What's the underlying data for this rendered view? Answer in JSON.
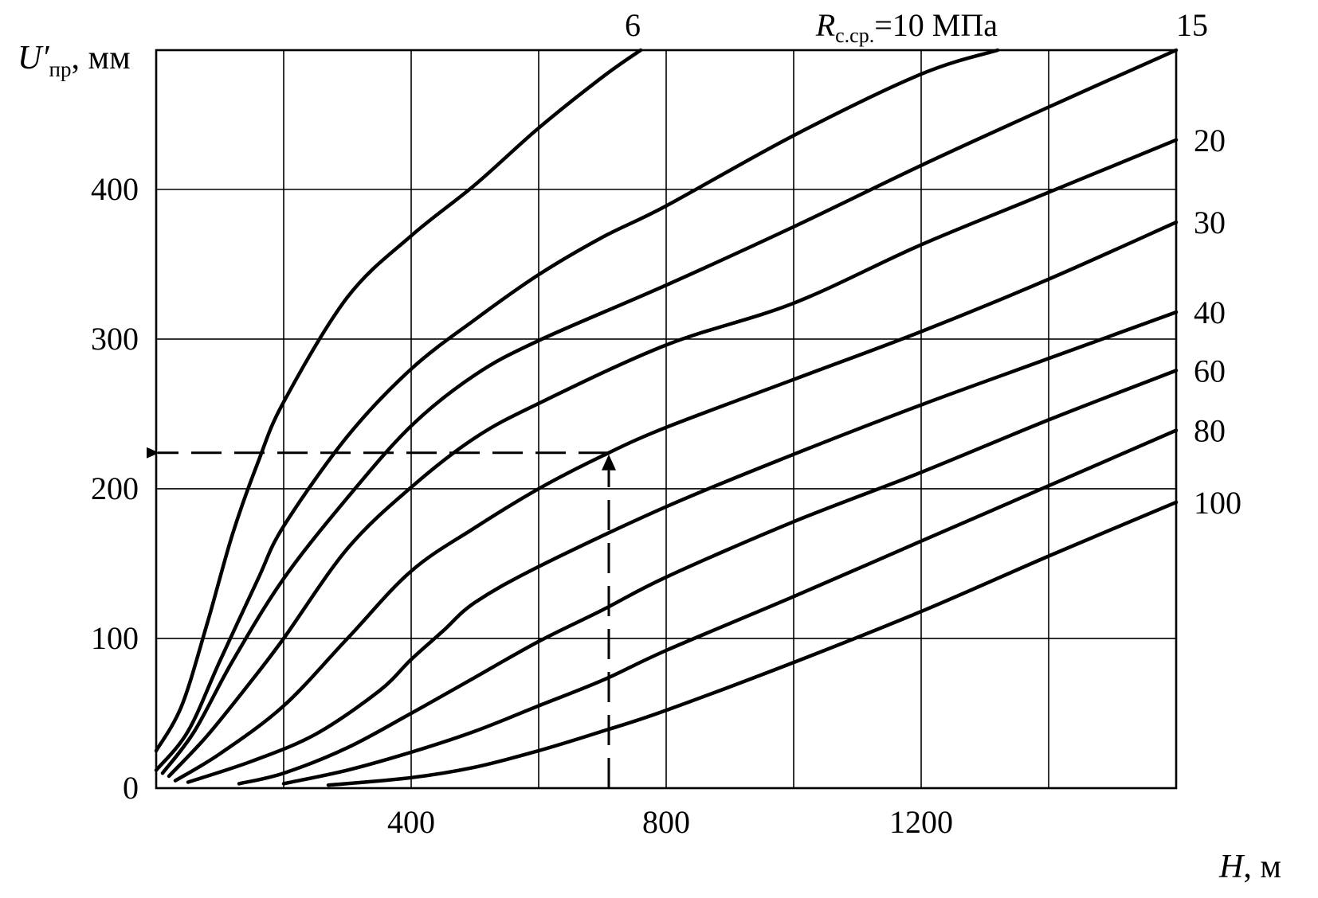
{
  "chart_data": {
    "type": "line",
    "title": "",
    "xlabel": {
      "var": "H",
      "unit": ", м"
    },
    "ylabel": {
      "var": "U′",
      "sub": "пр",
      "unit": ", мм"
    },
    "xlim": [
      0,
      1600
    ],
    "ylim": [
      0,
      493
    ],
    "xgrid": [
      200,
      400,
      600,
      800,
      1000,
      1200,
      1400
    ],
    "ygrid": [
      100,
      200,
      300,
      400
    ],
    "xticks": [
      {
        "value": 400,
        "label": "400"
      },
      {
        "value": 800,
        "label": "800"
      },
      {
        "value": 1200,
        "label": "1200"
      }
    ],
    "yticks": [
      {
        "value": 0,
        "label": "0"
      },
      {
        "value": 100,
        "label": "100"
      },
      {
        "value": 200,
        "label": "200"
      },
      {
        "value": 300,
        "label": "300"
      },
      {
        "value": 400,
        "label": "400"
      }
    ],
    "grid": true,
    "legend": "none",
    "series_label_prefix": {
      "var": "R",
      "sub": "с.ср.",
      "suffix": "="
    },
    "series_label_unit": " МПа",
    "series": [
      {
        "label": "6",
        "label_pos": "top",
        "points": [
          [
            0,
            25
          ],
          [
            40,
            55
          ],
          [
            80,
            110
          ],
          [
            120,
            170
          ],
          [
            160,
            218
          ],
          [
            200,
            258
          ],
          [
            300,
            328
          ],
          [
            400,
            369
          ],
          [
            500,
            403
          ],
          [
            600,
            441
          ],
          [
            700,
            475
          ],
          [
            760,
            493
          ]
        ]
      },
      {
        "label": "10",
        "label_pos": "top",
        "points": [
          [
            0,
            12
          ],
          [
            50,
            38
          ],
          [
            100,
            85
          ],
          [
            160,
            140
          ],
          [
            200,
            175
          ],
          [
            300,
            235
          ],
          [
            400,
            280
          ],
          [
            500,
            313
          ],
          [
            600,
            343
          ],
          [
            700,
            368
          ],
          [
            800,
            389
          ],
          [
            1000,
            436
          ],
          [
            1200,
            477
          ],
          [
            1320,
            493
          ]
        ]
      },
      {
        "label": "15",
        "label_pos": "top-end",
        "points": [
          [
            10,
            10
          ],
          [
            60,
            38
          ],
          [
            120,
            85
          ],
          [
            200,
            140
          ],
          [
            300,
            194
          ],
          [
            400,
            242
          ],
          [
            500,
            276
          ],
          [
            600,
            299
          ],
          [
            800,
            336
          ],
          [
            1000,
            375
          ],
          [
            1200,
            416
          ],
          [
            1400,
            455
          ],
          [
            1600,
            493
          ]
        ]
      },
      {
        "label": "20",
        "label_pos": "right",
        "points": [
          [
            20,
            8
          ],
          [
            80,
            35
          ],
          [
            150,
            72
          ],
          [
            200,
            100
          ],
          [
            300,
            160
          ],
          [
            400,
            201
          ],
          [
            500,
            234
          ],
          [
            600,
            257
          ],
          [
            800,
            296
          ],
          [
            1000,
            324
          ],
          [
            1200,
            363
          ],
          [
            1400,
            398
          ],
          [
            1600,
            433
          ]
        ]
      },
      {
        "label": "30",
        "label_pos": "right",
        "points": [
          [
            30,
            5
          ],
          [
            100,
            23
          ],
          [
            200,
            55
          ],
          [
            300,
            100
          ],
          [
            400,
            145
          ],
          [
            500,
            174
          ],
          [
            600,
            200
          ],
          [
            700,
            222
          ],
          [
            800,
            241
          ],
          [
            1000,
            273
          ],
          [
            1200,
            305
          ],
          [
            1400,
            340
          ],
          [
            1600,
            378
          ]
        ]
      },
      {
        "label": "40",
        "label_pos": "right",
        "points": [
          [
            50,
            4
          ],
          [
            150,
            18
          ],
          [
            250,
            36
          ],
          [
            350,
            65
          ],
          [
            400,
            86
          ],
          [
            450,
            105
          ],
          [
            500,
            124
          ],
          [
            600,
            148
          ],
          [
            800,
            188
          ],
          [
            1000,
            223
          ],
          [
            1200,
            256
          ],
          [
            1400,
            287
          ],
          [
            1600,
            318
          ]
        ]
      },
      {
        "label": "60",
        "label_pos": "right",
        "points": [
          [
            130,
            3
          ],
          [
            200,
            10
          ],
          [
            300,
            27
          ],
          [
            400,
            50
          ],
          [
            500,
            74
          ],
          [
            600,
            98
          ],
          [
            700,
            119
          ],
          [
            800,
            141
          ],
          [
            1000,
            178
          ],
          [
            1200,
            211
          ],
          [
            1400,
            246
          ],
          [
            1600,
            279
          ]
        ]
      },
      {
        "label": "80",
        "label_pos": "right",
        "points": [
          [
            200,
            3
          ],
          [
            300,
            12
          ],
          [
            400,
            24
          ],
          [
            500,
            38
          ],
          [
            600,
            55
          ],
          [
            700,
            72
          ],
          [
            800,
            92
          ],
          [
            1000,
            128
          ],
          [
            1200,
            165
          ],
          [
            1400,
            202
          ],
          [
            1600,
            239
          ]
        ]
      },
      {
        "label": "100",
        "label_pos": "right",
        "points": [
          [
            270,
            2
          ],
          [
            400,
            7
          ],
          [
            500,
            14
          ],
          [
            600,
            25
          ],
          [
            700,
            38
          ],
          [
            800,
            52
          ],
          [
            1000,
            84
          ],
          [
            1200,
            118
          ],
          [
            1400,
            155
          ],
          [
            1600,
            191
          ]
        ]
      }
    ],
    "annotation": {
      "type": "reading-guide",
      "x": 710,
      "y": 224
    }
  }
}
